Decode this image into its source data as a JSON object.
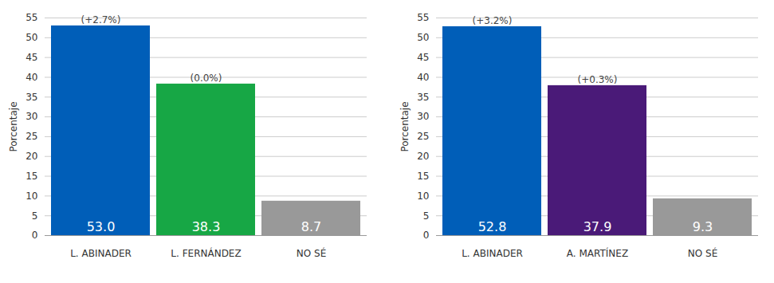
{
  "chart_data": [
    {
      "type": "bar",
      "categories": [
        "L. ABINADER",
        "L. FERNÁNDEZ",
        "NO SÉ"
      ],
      "values": [
        53.0,
        38.3,
        8.7
      ],
      "value_labels": [
        "53.0",
        "38.3",
        "8.7"
      ],
      "annotations": [
        "(+2.7%)",
        "(0.0%)",
        null
      ],
      "colors": [
        "#005eb8",
        "#17a745",
        "#999999"
      ],
      "y_label": "Porcentaje",
      "ylim": [
        0,
        55
      ],
      "yticks": [
        0,
        5,
        10,
        15,
        20,
        25,
        30,
        35,
        40,
        45,
        50,
        55
      ],
      "grid": true,
      "data_labels": true
    },
    {
      "type": "bar",
      "categories": [
        "L. ABINADER",
        "A. MARTÍNEZ",
        "NO SÉ"
      ],
      "values": [
        52.8,
        37.9,
        9.3
      ],
      "value_labels": [
        "52.8",
        "37.9",
        "9.3"
      ],
      "annotations": [
        "(+3.2%)",
        "(+0.3%)",
        null
      ],
      "colors": [
        "#005eb8",
        "#4a1a78",
        "#999999"
      ],
      "y_label": "Porcentaje",
      "ylim": [
        0,
        55
      ],
      "yticks": [
        0,
        5,
        10,
        15,
        20,
        25,
        30,
        35,
        40,
        45,
        50,
        55
      ],
      "grid": true,
      "data_labels": true
    }
  ]
}
